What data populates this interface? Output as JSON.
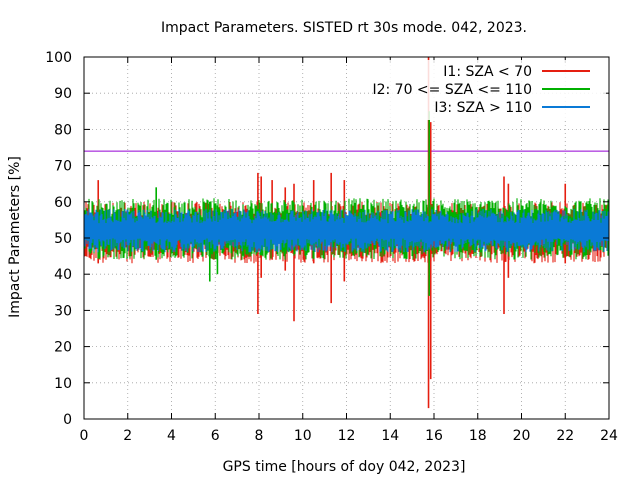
{
  "chart_data": {
    "type": "line",
    "title": "Impact Parameters. SISTED rt 30s mode. 042, 2023.",
    "xlabel": "GPS time [hours of doy 042, 2023]",
    "ylabel": "Impact Parameters [%]",
    "xlim": [
      0,
      24
    ],
    "ylim": [
      0,
      100
    ],
    "xticks": [
      0,
      2,
      4,
      6,
      8,
      10,
      12,
      14,
      16,
      18,
      20,
      22,
      24
    ],
    "yticks": [
      0,
      10,
      20,
      30,
      40,
      50,
      60,
      70,
      80,
      90,
      100
    ],
    "grid": true,
    "legend_position": "top-right",
    "threshold": {
      "name": "threshold",
      "value": 74,
      "color": "#9400d3"
    },
    "series": [
      {
        "name": "I1: SZA < 70",
        "color": "#e51e10",
        "band": [
          43,
          60
        ],
        "spikes": [
          {
            "x": 0.65,
            "low": 43,
            "high": 66
          },
          {
            "x": 7.95,
            "low": 29,
            "high": 68
          },
          {
            "x": 8.1,
            "low": 39,
            "high": 67
          },
          {
            "x": 8.6,
            "low": 44,
            "high": 66
          },
          {
            "x": 9.2,
            "low": 41,
            "high": 64
          },
          {
            "x": 9.6,
            "low": 27,
            "high": 65
          },
          {
            "x": 10.5,
            "low": 43,
            "high": 66
          },
          {
            "x": 11.3,
            "low": 32,
            "high": 68
          },
          {
            "x": 11.9,
            "low": 38,
            "high": 66
          },
          {
            "x": 15.75,
            "low": 3,
            "high": 100
          },
          {
            "x": 15.85,
            "low": 11,
            "high": 82
          },
          {
            "x": 19.2,
            "low": 29,
            "high": 67
          },
          {
            "x": 19.4,
            "low": 39,
            "high": 65
          },
          {
            "x": 22.0,
            "low": 43,
            "high": 65
          }
        ]
      },
      {
        "name": "I2: 70 <= SZA <= 110",
        "color": "#00b000",
        "band": [
          44,
          61
        ],
        "spikes": [
          {
            "x": 3.3,
            "low": 44,
            "high": 64
          },
          {
            "x": 5.75,
            "low": 38,
            "high": 60
          },
          {
            "x": 6.1,
            "low": 40,
            "high": 59
          },
          {
            "x": 15.78,
            "low": 34,
            "high": 85
          }
        ]
      },
      {
        "name": "I3: SZA > 110",
        "color": "#0a7ad6",
        "band": [
          46,
          58
        ]
      }
    ]
  }
}
